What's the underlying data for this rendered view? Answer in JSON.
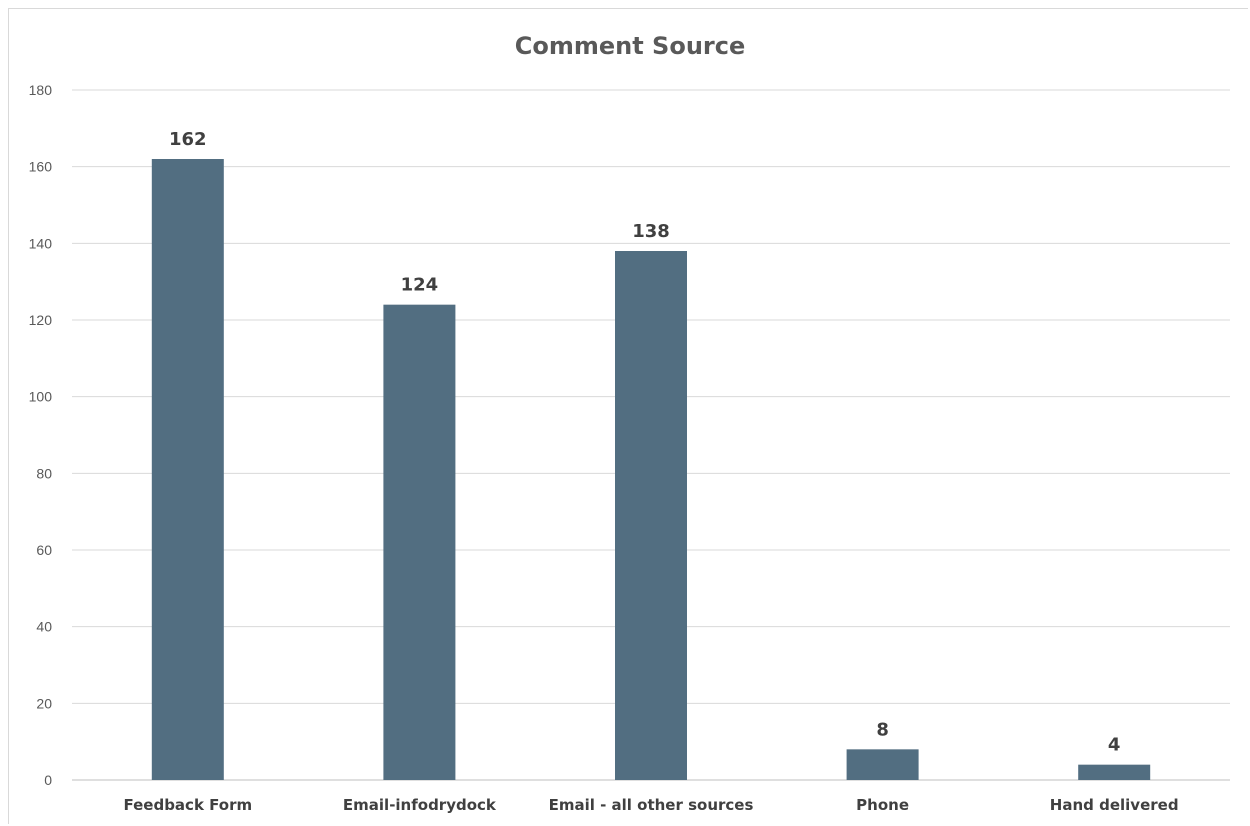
{
  "chart_data": {
    "type": "bar",
    "title": "Comment Source",
    "xlabel": "",
    "ylabel": "",
    "categories": [
      "Feedback Form",
      "Email-infodrydock",
      "Email - all other sources",
      "Phone",
      "Hand delivered"
    ],
    "values": [
      162,
      124,
      138,
      8,
      4
    ],
    "data_labels": [
      "162",
      "124",
      "138",
      "8",
      "4"
    ],
    "ylim": [
      0,
      180
    ],
    "yticks": [
      "0",
      "20",
      "40",
      "60",
      "80",
      "100",
      "120",
      "140",
      "160",
      "180"
    ],
    "grid": true,
    "legend": "none",
    "bar_color": "#526e81"
  }
}
